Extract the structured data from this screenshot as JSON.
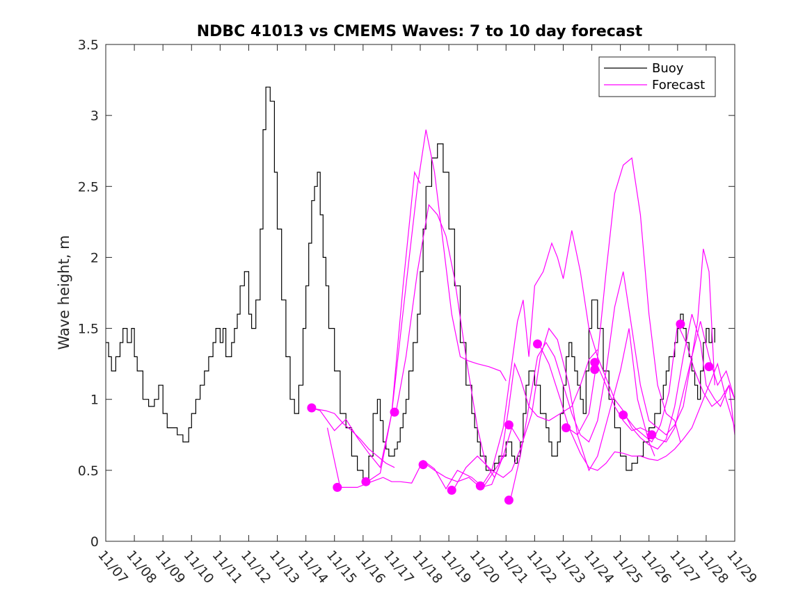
{
  "chart_data": {
    "type": "line",
    "title": "NDBC 41013 vs CMEMS Waves: 7 to 10 day forecast",
    "xlabel": "",
    "ylabel": "Wave height, m",
    "xlim": [
      0,
      22
    ],
    "ylim": [
      0,
      3.5
    ],
    "yticks": [
      0,
      0.5,
      1,
      1.5,
      2,
      2.5,
      3,
      3.5
    ],
    "ytick_labels": [
      "0",
      "0.5",
      "1",
      "1.5",
      "2",
      "2.5",
      "3",
      "3.5"
    ],
    "xticks": [
      0,
      1,
      2,
      3,
      4,
      5,
      6,
      7,
      8,
      9,
      10,
      11,
      12,
      13,
      14,
      15,
      16,
      17,
      18,
      19,
      20,
      21,
      22
    ],
    "xtick_labels": [
      "11/07",
      "11/08",
      "11/09",
      "11/10",
      "11/11",
      "11/12",
      "11/13",
      "11/14",
      "11/15",
      "11/16",
      "11/17",
      "11/18",
      "11/19",
      "11/20",
      "11/21",
      "11/22",
      "11/23",
      "11/24",
      "11/25",
      "11/26",
      "11/27",
      "11/28",
      "11/29"
    ],
    "grid": false,
    "legend": {
      "placement": "top-right",
      "entries": [
        {
          "label": "Buoy",
          "color": "#000000"
        },
        {
          "label": "Forecast",
          "color": "#ff00ff"
        }
      ]
    },
    "colors": {
      "buoy": "#000000",
      "forecast": "#ff00ff",
      "axis": "#262626"
    },
    "series": [
      {
        "name": "Buoy",
        "color": "#000000",
        "x": [
          0,
          0.1,
          0.2,
          0.35,
          0.5,
          0.6,
          0.75,
          0.9,
          1.0,
          1.1,
          1.3,
          1.5,
          1.7,
          1.85,
          2.0,
          2.15,
          2.3,
          2.5,
          2.7,
          2.9,
          3.0,
          3.15,
          3.3,
          3.45,
          3.6,
          3.75,
          3.85,
          4.0,
          4.1,
          4.2,
          4.3,
          4.4,
          4.5,
          4.6,
          4.7,
          4.85,
          5.0,
          5.1,
          5.25,
          5.4,
          5.5,
          5.6,
          5.75,
          5.9,
          6.0,
          6.15,
          6.3,
          6.45,
          6.6,
          6.75,
          6.9,
          7.0,
          7.1,
          7.2,
          7.3,
          7.4,
          7.5,
          7.6,
          7.7,
          7.8,
          8.0,
          8.2,
          8.4,
          8.6,
          8.8,
          9.0,
          9.2,
          9.35,
          9.5,
          9.6,
          9.7,
          9.8,
          9.9,
          10.0,
          10.1,
          10.2,
          10.3,
          10.4,
          10.5,
          10.6,
          10.75,
          10.9,
          11.0,
          11.1,
          11.2,
          11.4,
          11.6,
          11.8,
          12.0,
          12.2,
          12.4,
          12.6,
          12.8,
          12.9,
          13.0,
          13.1,
          13.2,
          13.3,
          13.4,
          13.5,
          13.6,
          13.75,
          13.9,
          14.0,
          14.1,
          14.2,
          14.3,
          14.4,
          14.5,
          14.6,
          14.7,
          14.8,
          15.0,
          15.2,
          15.4,
          15.5,
          15.6,
          15.7,
          15.8,
          15.9,
          16.0,
          16.1,
          16.2,
          16.3,
          16.4,
          16.5,
          16.6,
          16.7,
          16.8,
          16.9,
          17.0,
          17.2,
          17.4,
          17.6,
          17.8,
          18.0,
          18.2,
          18.4,
          18.6,
          18.8,
          19.0,
          19.2,
          19.4,
          19.5,
          19.6,
          19.7,
          19.8,
          19.9,
          20.0,
          20.1,
          20.2,
          20.3,
          20.4,
          20.5,
          20.6,
          20.7,
          20.8,
          20.9,
          21.0,
          21.1,
          21.2,
          21.3
        ],
        "values": [
          1.4,
          1.3,
          1.2,
          1.3,
          1.4,
          1.5,
          1.4,
          1.5,
          1.3,
          1.2,
          1.0,
          0.95,
          1.0,
          1.1,
          0.9,
          0.8,
          0.8,
          0.75,
          0.7,
          0.8,
          0.9,
          1.0,
          1.1,
          1.2,
          1.3,
          1.4,
          1.5,
          1.4,
          1.5,
          1.3,
          1.3,
          1.4,
          1.5,
          1.6,
          1.8,
          1.9,
          1.6,
          1.5,
          1.7,
          2.2,
          2.9,
          3.2,
          3.1,
          2.6,
          2.2,
          1.7,
          1.3,
          1.0,
          0.9,
          1.1,
          1.5,
          1.8,
          2.1,
          2.4,
          2.5,
          2.6,
          2.3,
          2.0,
          1.8,
          1.5,
          1.2,
          0.9,
          0.8,
          0.6,
          0.5,
          0.4,
          0.6,
          0.9,
          1.0,
          0.85,
          0.7,
          0.65,
          0.6,
          0.6,
          0.65,
          0.7,
          0.8,
          0.9,
          1.0,
          1.2,
          1.4,
          1.6,
          1.9,
          2.2,
          2.5,
          2.7,
          2.8,
          2.6,
          2.2,
          1.8,
          1.4,
          1.1,
          0.9,
          0.8,
          0.7,
          0.6,
          0.6,
          0.5,
          0.5,
          0.5,
          0.55,
          0.6,
          0.6,
          0.7,
          0.7,
          0.6,
          0.55,
          0.6,
          0.7,
          0.9,
          1.1,
          1.2,
          1.1,
          0.9,
          0.8,
          0.7,
          0.6,
          0.6,
          0.7,
          0.9,
          1.1,
          1.3,
          1.4,
          1.3,
          1.2,
          1.1,
          1.0,
          0.9,
          1.2,
          1.5,
          1.7,
          1.5,
          1.2,
          1.0,
          0.8,
          0.6,
          0.5,
          0.55,
          0.6,
          0.7,
          0.8,
          0.9,
          1.0,
          1.1,
          1.2,
          1.3,
          1.3,
          1.4,
          1.5,
          1.6,
          1.5,
          1.4,
          1.3,
          1.2,
          1.1,
          1.0,
          1.2,
          1.4,
          1.5,
          1.4,
          1.5,
          1.4
        ]
      },
      {
        "name": "Forecast",
        "color": "#ff00ff",
        "segments": [
          {
            "x": [
              7.2,
              7.5,
              8.0,
              8.4,
              8.8,
              9.2,
              9.6,
              10.0,
              10.4,
              10.8,
              11.0
            ],
            "values": [
              0.94,
              0.92,
              0.78,
              0.86,
              0.73,
              0.62,
              0.52,
              0.9,
              1.8,
              2.6,
              2.52
            ]
          },
          {
            "x": [
              7.75,
              8.2,
              8.8,
              9.3,
              9.7,
              10.0,
              10.3,
              10.7,
              11.1,
              11.5,
              11.9,
              12.3,
              12.8,
              13.2,
              13.6,
              14.0
            ],
            "values": [
              0.8,
              0.38,
              0.38,
              0.42,
              0.45,
              0.42,
              0.42,
              0.41,
              0.57,
              0.51,
              0.37,
              0.5,
              0.45,
              0.38,
              0.5,
              0.62
            ]
          },
          {
            "x": [
              9.15,
              9.6,
              10.0,
              10.5,
              10.9,
              11.2,
              11.5,
              11.8,
              12.1,
              12.4,
              12.7,
              13.0,
              13.4,
              13.8,
              14.0
            ],
            "values": [
              0.42,
              0.48,
              0.9,
              1.8,
              2.5,
              2.9,
              2.6,
              2.1,
              1.6,
              1.3,
              1.27,
              1.25,
              1.23,
              1.2,
              1.13
            ]
          },
          {
            "x": [
              10.15,
              10.5,
              10.9,
              11.3,
              11.6,
              11.9,
              12.2,
              12.6,
              13.0,
              13.3,
              13.6,
              13.9,
              14.2,
              14.5
            ],
            "values": [
              0.91,
              1.3,
              1.9,
              2.37,
              2.3,
              2.15,
              1.85,
              1.3,
              0.8,
              0.54,
              0.45,
              0.6,
              0.8,
              0.7
            ]
          },
          {
            "x": [
              11.15,
              11.5,
              11.9,
              12.3,
              12.7,
              13.1,
              13.5,
              13.8,
              14.1,
              14.3,
              14.5,
              14.8,
              15.1,
              15.5,
              15.9,
              16.3,
              16.6,
              16.9,
              17.2
            ],
            "values": [
              0.55,
              0.5,
              0.45,
              0.42,
              0.45,
              0.38,
              0.4,
              0.55,
              0.95,
              1.25,
              1.15,
              0.95,
              0.88,
              0.85,
              0.9,
              0.95,
              1.1,
              1.28,
              1.35
            ]
          },
          {
            "x": [
              12.15,
              12.6,
              13.0,
              13.5,
              13.9,
              14.2,
              14.5,
              14.9,
              15.2,
              15.5,
              15.8,
              16.2,
              16.5,
              16.9,
              17.2,
              17.6,
              18.0,
              18.3,
              18.6,
              19.0,
              19.2
            ],
            "values": [
              0.36,
              0.52,
              0.6,
              0.5,
              0.45,
              0.5,
              0.65,
              0.9,
              1.3,
              1.5,
              1.42,
              1.1,
              0.75,
              0.5,
              0.6,
              0.9,
              1.2,
              1.5,
              1.0,
              0.7,
              0.6
            ]
          },
          {
            "x": [
              13.15,
              13.5,
              13.9,
              14.2,
              14.4,
              14.6,
              14.8,
              15.0,
              15.3,
              15.6,
              15.8,
              16.0,
              16.3,
              16.6,
              16.9,
              17.2,
              17.5,
              17.8,
              18.1,
              18.4,
              18.7,
              19.0,
              19.3,
              19.6,
              19.9,
              20.2,
              20.5,
              20.8,
              21.0,
              21.3,
              21.5,
              21.8,
              22.0
            ],
            "values": [
              0.39,
              0.5,
              0.8,
              1.25,
              1.55,
              1.7,
              1.3,
              1.8,
              1.9,
              2.1,
              2.0,
              1.85,
              2.19,
              1.9,
              1.5,
              1.3,
              1.15,
              1.0,
              0.92,
              0.8,
              0.73,
              0.68,
              0.65,
              0.72,
              0.95,
              1.3,
              1.6,
              1.4,
              1.1,
              1.0,
              0.95,
              1.1,
              0.75
            ]
          },
          {
            "x": [
              14.15,
              14.5,
              14.8,
              15.1,
              15.4,
              15.7,
              16.0,
              16.3,
              16.6,
              16.9,
              17.2,
              17.5,
              17.8,
              18.1,
              18.4,
              18.7,
              19.0,
              19.3,
              19.6,
              19.9,
              20.2,
              20.5,
              20.8,
              21.1,
              21.4,
              21.7,
              22.0
            ],
            "values": [
              0.29,
              0.6,
              0.95,
              1.3,
              1.4,
              1.3,
              1.1,
              0.9,
              0.75,
              0.7,
              0.85,
              1.2,
              1.65,
              1.9,
              1.5,
              1.1,
              0.85,
              0.8,
              0.75,
              0.82,
              0.95,
              1.3,
              1.55,
              1.3,
              1.1,
              1.2,
              1.0
            ]
          },
          {
            "x": [
              15.15,
              15.5,
              15.9,
              16.2,
              16.6,
              16.9,
              17.2,
              17.5,
              17.8,
              18.1,
              18.4,
              18.7,
              19.0,
              19.3,
              19.6,
              19.9,
              20.2,
              20.5,
              20.8,
              21.1,
              21.4,
              21.7,
              22.0
            ],
            "values": [
              1.39,
              1.25,
              1.0,
              0.8,
              0.62,
              0.52,
              0.5,
              0.55,
              0.63,
              0.62,
              0.6,
              0.6,
              0.58,
              0.57,
              0.6,
              0.65,
              0.72,
              0.8,
              0.95,
              1.1,
              1.25,
              1.0,
              0.8
            ]
          },
          {
            "x": [
              16.15,
              16.5,
              16.9,
              17.2,
              17.5,
              17.8,
              18.1,
              18.4,
              18.7,
              19.0,
              19.3,
              19.6,
              19.9,
              20.1
            ],
            "values": [
              0.8,
              0.75,
              0.9,
              1.3,
              1.9,
              2.45,
              2.65,
              2.7,
              2.3,
              1.6,
              1.1,
              0.9,
              0.85,
              0.7
            ]
          },
          {
            "x": [
              17.15,
              17.5,
              17.8,
              18.1,
              18.4,
              18.7,
              19.0,
              19.3,
              19.6,
              19.9,
              20.2,
              20.5,
              20.7,
              20.9,
              21.1,
              21.3
            ],
            "values": [
              1.26,
              1.1,
              0.95,
              0.85,
              0.78,
              0.8,
              0.77,
              0.72,
              0.7,
              0.8,
              1.05,
              1.3,
              1.55,
              2.06,
              1.9,
              1.1
            ]
          },
          {
            "x": [
              18.15,
              18.5,
              18.8,
              19.1,
              19.4,
              19.7,
              20.0,
              20.3,
              20.6,
              20.9,
              21.2,
              21.5,
              21.8,
              22.0
            ],
            "values": [
              0.89,
              0.8,
              0.75,
              0.7,
              0.82,
              1.05,
              1.53,
              1.4,
              1.2,
              1.05,
              0.95,
              1.0,
              1.1,
              1.0
            ]
          },
          {
            "x": [
              7.1,
              7.4,
              7.7,
              8.0,
              8.3,
              8.6,
              8.9,
              9.2,
              9.5,
              9.8,
              10.1
            ],
            "values": [
              0.94,
              0.93,
              0.92,
              0.9,
              0.83,
              0.78,
              0.72,
              0.65,
              0.6,
              0.55,
              0.52
            ]
          }
        ]
      },
      {
        "name": "Forecast start points",
        "color": "#ff00ff",
        "x": [
          7.2,
          8.1,
          9.1,
          10.1,
          11.1,
          12.1,
          13.1,
          14.1,
          15.1,
          16.1,
          17.1,
          18.1,
          19.1,
          20.1,
          21.1,
          14.1,
          17.1
        ],
        "values": [
          0.94,
          0.38,
          0.42,
          0.91,
          0.54,
          0.36,
          0.39,
          0.29,
          1.39,
          0.8,
          1.26,
          0.89,
          0.75,
          1.53,
          1.23,
          0.82,
          1.21
        ]
      }
    ]
  }
}
